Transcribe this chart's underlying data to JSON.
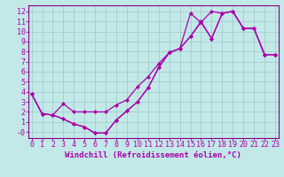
{
  "xlabel": "Windchill (Refroidissement éolien,°C)",
  "background_color": "#c2e8e8",
  "line_color": "#aa00aa",
  "grid_color": "#a0c8c8",
  "spine_color": "#880088",
  "xticks": [
    0,
    1,
    2,
    3,
    4,
    5,
    6,
    7,
    8,
    9,
    10,
    11,
    12,
    13,
    14,
    15,
    16,
    17,
    18,
    19,
    20,
    21,
    22,
    23
  ],
  "yticks": [
    0,
    1,
    2,
    3,
    4,
    5,
    6,
    7,
    8,
    9,
    10,
    11,
    12
  ],
  "ytick_labels": [
    "-0",
    "1",
    "2",
    "3",
    "4",
    "5",
    "6",
    "7",
    "8",
    "9",
    "10",
    "11",
    "12"
  ],
  "line1_x": [
    0,
    1,
    2,
    3,
    4,
    5,
    6,
    7,
    8,
    9,
    10,
    11,
    12,
    13,
    14,
    15,
    16,
    17,
    18,
    19,
    20,
    21,
    22,
    23
  ],
  "line1_y": [
    3.8,
    1.8,
    1.7,
    1.3,
    0.8,
    0.5,
    -0.1,
    -0.1,
    1.2,
    2.1,
    3.0,
    4.4,
    6.4,
    7.9,
    8.3,
    11.8,
    10.9,
    12.0,
    11.8,
    12.0,
    10.3,
    10.3,
    7.7,
    7.7
  ],
  "line2_x": [
    0,
    1,
    2,
    3,
    4,
    5,
    6,
    7,
    8,
    9,
    10,
    11,
    12,
    13,
    14,
    15,
    16,
    17,
    18,
    19,
    20,
    21,
    22,
    23
  ],
  "line2_y": [
    3.8,
    1.8,
    1.7,
    1.3,
    0.8,
    0.5,
    -0.1,
    -0.1,
    1.2,
    2.1,
    3.0,
    4.4,
    6.4,
    7.9,
    8.3,
    9.5,
    11.0,
    9.3,
    11.8,
    12.0,
    10.3,
    10.3,
    7.7,
    7.7
  ],
  "line3_x": [
    0,
    1,
    2,
    3,
    4,
    5,
    6,
    7,
    8,
    9,
    10,
    11,
    12,
    13,
    14,
    15,
    16,
    17,
    18,
    19,
    20,
    21,
    22,
    23
  ],
  "line3_y": [
    3.8,
    1.8,
    1.7,
    2.8,
    2.0,
    2.0,
    2.0,
    2.0,
    2.7,
    3.2,
    4.5,
    5.5,
    6.8,
    7.9,
    8.3,
    9.5,
    10.9,
    9.3,
    11.8,
    12.0,
    10.3,
    10.3,
    7.7,
    7.7
  ],
  "marker": "D",
  "markersize": 2.5,
  "linewidth": 0.9,
  "xlabel_fontsize": 6.5,
  "tick_fontsize": 6.0
}
